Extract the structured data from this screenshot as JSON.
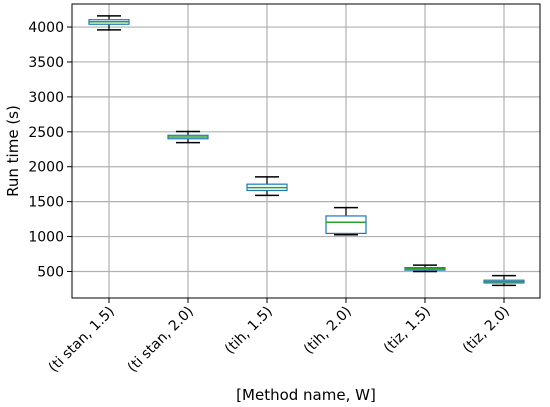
{
  "chart_data": {
    "type": "box",
    "title": "",
    "xlabel": "[Method name, W]",
    "ylabel": "Run time (s)",
    "ylim": [
      120,
      4330
    ],
    "yticks": [
      500,
      1000,
      1500,
      2000,
      2500,
      3000,
      3500,
      4000
    ],
    "grid": true,
    "categories": [
      "(ti stan, 1.5)",
      "(ti stan, 2.0)",
      "(tih, 1.5)",
      "(tih, 2.0)",
      "(tiz, 1.5)",
      "(tiz, 2.0)"
    ],
    "boxes": [
      {
        "whisker_low": 3960,
        "q1": 4040,
        "median": 4075,
        "q3": 4105,
        "whisker_high": 4160
      },
      {
        "whisker_low": 2345,
        "q1": 2400,
        "median": 2425,
        "q3": 2450,
        "whisker_high": 2505
      },
      {
        "whisker_low": 1590,
        "q1": 1660,
        "median": 1700,
        "q3": 1750,
        "whisker_high": 1855
      },
      {
        "whisker_low": 1025,
        "q1": 1045,
        "median": 1205,
        "q3": 1295,
        "whisker_high": 1415
      },
      {
        "whisker_low": 500,
        "q1": 520,
        "median": 540,
        "q3": 555,
        "whisker_high": 590
      },
      {
        "whisker_low": 300,
        "q1": 335,
        "median": 355,
        "q3": 375,
        "whisker_high": 440
      }
    ],
    "colors": {
      "box": "#1f77b4",
      "median": "#2ca02c",
      "whisker": "#000000",
      "grid": "#b0b0b0",
      "axis": "#000000"
    }
  }
}
